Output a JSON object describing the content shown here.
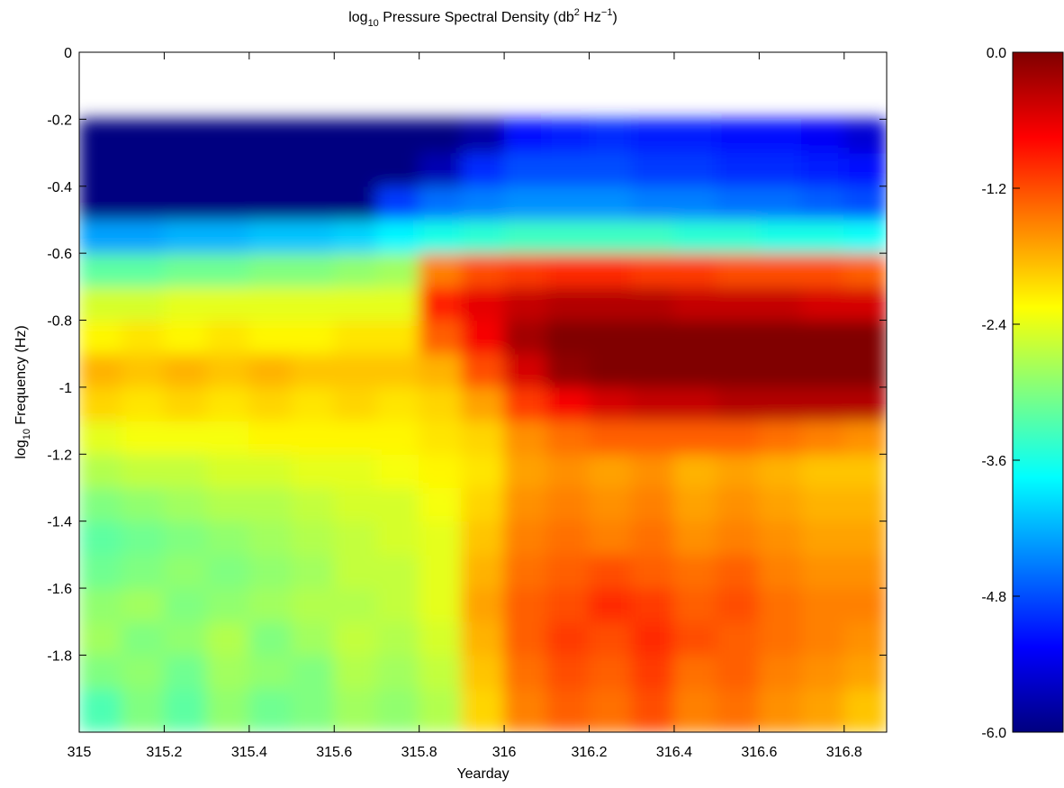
{
  "chart_data": {
    "type": "heatmap",
    "title": [
      {
        "text": "log"
      },
      {
        "text": "10",
        "shift": "sub"
      },
      {
        "text": " Pressure Spectral Density (db"
      },
      {
        "text": "2",
        "shift": "super"
      },
      {
        "text": " Hz"
      },
      {
        "text": "−1",
        "shift": "super"
      },
      {
        "text": ")"
      }
    ],
    "xlabel": "Yearday",
    "ylabel": [
      {
        "text": "log"
      },
      {
        "text": "10",
        "shift": "sub"
      },
      {
        "text": " Frequency (Hz)"
      }
    ],
    "xlim": [
      315,
      316.9
    ],
    "ylim": [
      -2.03,
      0
    ],
    "xticks": [
      315,
      315.2,
      315.4,
      315.6,
      315.8,
      316,
      316.2,
      316.4,
      316.6,
      316.8
    ],
    "yticks": [
      0,
      -0.2,
      -0.4,
      -0.6,
      -0.8,
      -1,
      -1.2,
      -1.4,
      -1.6,
      -1.8
    ],
    "xbins": [
      315,
      315.1,
      315.2,
      315.3,
      315.4,
      315.5,
      315.6,
      315.7,
      315.8,
      315.9,
      316,
      316.1,
      316.2,
      316.3,
      316.4,
      316.5,
      316.6,
      316.7,
      316.8,
      316.9
    ],
    "ybins": [
      -2.03,
      -1.9,
      -1.8,
      -1.7,
      -1.6,
      -1.5,
      -1.4,
      -1.3,
      -1.2,
      -1.1,
      -1,
      -0.9,
      -0.8,
      -0.7,
      -0.6,
      -0.5,
      -0.4,
      -0.3,
      -0.2
    ],
    "z": [
      [
        -3.3,
        -3.0,
        -3.2,
        -2.9,
        -3.1,
        -3.0,
        -2.8,
        -2.9,
        -2.7,
        -2.0,
        -1.5,
        -1.3,
        -1.4,
        -1.2,
        -1.5,
        -1.4,
        -1.6,
        -1.7,
        -1.9
      ],
      [
        -3.0,
        -2.9,
        -3.1,
        -2.8,
        -2.9,
        -3.0,
        -2.7,
        -2.8,
        -2.6,
        -1.9,
        -1.4,
        -1.2,
        -1.3,
        -1.1,
        -1.4,
        -1.3,
        -1.5,
        -1.6,
        -1.7
      ],
      [
        -2.8,
        -3.0,
        -2.9,
        -2.7,
        -3.0,
        -2.8,
        -2.6,
        -2.7,
        -2.5,
        -1.8,
        -1.3,
        -1.1,
        -1.2,
        -1.0,
        -1.2,
        -1.3,
        -1.4,
        -1.5,
        -1.6
      ],
      [
        -2.9,
        -2.8,
        -3.0,
        -2.9,
        -2.8,
        -2.7,
        -2.7,
        -2.6,
        -2.4,
        -1.7,
        -1.3,
        -1.2,
        -1.0,
        -1.1,
        -1.3,
        -1.2,
        -1.4,
        -1.5,
        -1.5
      ],
      [
        -3.1,
        -3.0,
        -2.9,
        -3.0,
        -2.9,
        -2.8,
        -2.6,
        -2.6,
        -2.4,
        -1.8,
        -1.4,
        -1.3,
        -1.2,
        -1.3,
        -1.4,
        -1.3,
        -1.5,
        -1.6,
        -1.6
      ],
      [
        -3.2,
        -3.1,
        -3.0,
        -2.9,
        -2.8,
        -2.7,
        -2.6,
        -2.5,
        -2.4,
        -1.9,
        -1.5,
        -1.4,
        -1.5,
        -1.4,
        -1.6,
        -1.5,
        -1.6,
        -1.7,
        -1.7
      ],
      [
        -3.0,
        -2.9,
        -2.8,
        -2.7,
        -2.7,
        -2.6,
        -2.5,
        -2.5,
        -2.3,
        -2.0,
        -1.6,
        -1.5,
        -1.6,
        -1.5,
        -1.7,
        -1.6,
        -1.7,
        -1.8,
        -1.8
      ],
      [
        -2.7,
        -2.6,
        -2.6,
        -2.5,
        -2.5,
        -2.4,
        -2.4,
        -2.3,
        -2.2,
        -2.1,
        -1.7,
        -1.6,
        -1.7,
        -1.6,
        -1.8,
        -1.7,
        -1.8,
        -1.9,
        -1.9
      ],
      [
        -2.4,
        -2.3,
        -2.3,
        -2.3,
        -2.2,
        -2.2,
        -2.2,
        -2.2,
        -2.1,
        -2.0,
        -1.6,
        -1.4,
        -1.3,
        -1.3,
        -1.3,
        -1.3,
        -1.4,
        -1.5,
        -1.6
      ],
      [
        -2.0,
        -2.1,
        -2.0,
        -2.1,
        -2.0,
        -2.1,
        -2.0,
        -2.1,
        -2.0,
        -1.7,
        -1.1,
        -0.7,
        -0.5,
        -0.4,
        -0.4,
        -0.3,
        -0.3,
        -0.3,
        -0.3
      ],
      [
        -1.8,
        -1.9,
        -1.8,
        -1.9,
        -1.8,
        -1.9,
        -1.9,
        -1.9,
        -1.8,
        -1.2,
        -0.5,
        -0.1,
        0,
        0,
        0,
        0,
        0,
        0,
        0
      ],
      [
        -2.2,
        -2.1,
        -2.2,
        -2.1,
        -2.2,
        -2.2,
        -2.1,
        -2.1,
        -1.3,
        -0.7,
        -0.2,
        0,
        0,
        0,
        0,
        0,
        0,
        0,
        0
      ],
      [
        -2.5,
        -2.5,
        -2.4,
        -2.4,
        -2.4,
        -2.4,
        -2.4,
        -2.4,
        -0.9,
        -0.6,
        -0.4,
        -0.3,
        -0.3,
        -0.3,
        -0.4,
        -0.4,
        -0.4,
        -0.5,
        -0.5
      ],
      [
        -3.2,
        -3.2,
        -3.1,
        -3.1,
        -3.0,
        -3.0,
        -2.9,
        -2.8,
        -1.5,
        -1.2,
        -1.1,
        -1.0,
        -1.0,
        -1.1,
        -1.1,
        -1.2,
        -1.2,
        -1.2,
        -1.3
      ],
      [
        -4.3,
        -4.3,
        -4.2,
        -4.2,
        -4.1,
        -4.1,
        -4.0,
        -3.8,
        -3.6,
        -3.5,
        -3.4,
        -3.4,
        -3.4,
        -3.4,
        -3.5,
        -3.5,
        -3.6,
        -3.6,
        -3.7
      ],
      [
        -6,
        -6,
        -6,
        -6,
        -6,
        -6,
        -6,
        -4.9,
        -4.6,
        -4.5,
        -4.4,
        -4.4,
        -4.4,
        -4.5,
        -4.5,
        -4.6,
        -4.6,
        -4.7,
        -4.8
      ],
      [
        -6,
        -6,
        -6,
        -6,
        -6,
        -6,
        -6,
        -6,
        -5.7,
        -5.0,
        -4.8,
        -4.8,
        -4.8,
        -4.9,
        -4.9,
        -5.0,
        -5.0,
        -5.1,
        -5.2
      ],
      [
        -6,
        -6,
        -6,
        -6,
        -6,
        -6,
        -6,
        -6,
        -6,
        -5.8,
        -5.2,
        -5.1,
        -5.0,
        -5.1,
        -5.1,
        -5.2,
        -5.2,
        -5.3,
        -5.5
      ]
    ],
    "colormap": "jet",
    "colorbar": {
      "clim": [
        -6,
        0
      ],
      "ticks": [
        {
          "value": 0,
          "label": "0.0"
        },
        {
          "value": -1.2,
          "label": "-1.2"
        },
        {
          "value": -2.4,
          "label": "-2.4"
        },
        {
          "value": -3.6,
          "label": "-3.6"
        },
        {
          "value": -4.8,
          "label": "-4.8"
        },
        {
          "value": -6,
          "label": "-6.0"
        }
      ]
    }
  }
}
